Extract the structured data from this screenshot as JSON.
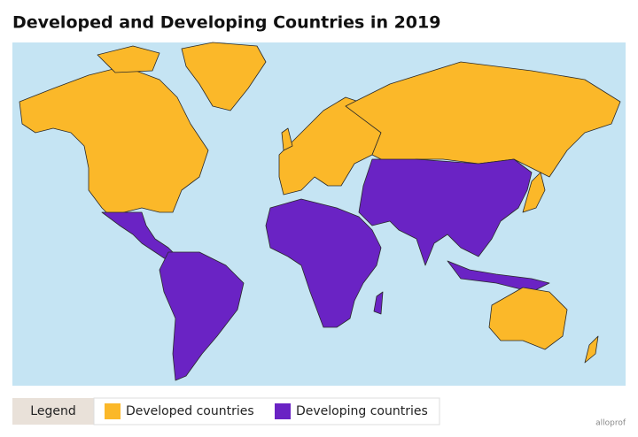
{
  "title": "Developed and Developing Countries in 2019",
  "legend": {
    "title": "Legend",
    "items": [
      {
        "label": "Developed countries",
        "color": "#fbb829"
      },
      {
        "label": "Developing countries",
        "color": "#6a23c4"
      }
    ]
  },
  "watermark": "alloprof"
}
